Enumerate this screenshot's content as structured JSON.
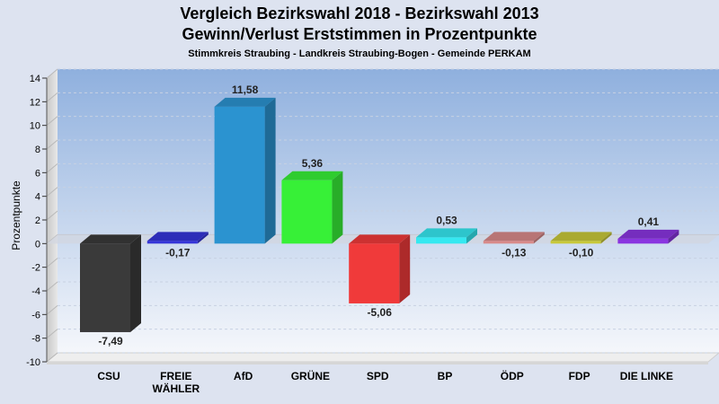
{
  "header": {
    "title_line1": "Vergleich Bezirkswahl 2018 - Bezirkswahl 2013",
    "title_line2": "Gewinn/Verlust Erststimmen in Prozentpunkte",
    "subtitle": "Stimmkreis Straubing - Landkreis Straubing-Bogen - Gemeinde PERKAM"
  },
  "chart_data": {
    "type": "bar",
    "title": "Vergleich Bezirkswahl 2018 - Bezirkswahl 2013 / Gewinn/Verlust Erststimmen in Prozentpunkte",
    "subtitle": "Stimmkreis Straubing - Landkreis Straubing-Bogen - Gemeinde PERKAM",
    "xlabel": "",
    "ylabel": "Prozentpunkte",
    "ylim": [
      -10,
      14
    ],
    "yticks": [
      14,
      12,
      10,
      8,
      6,
      4,
      2,
      0,
      -2,
      -4,
      -6,
      -8,
      -10
    ],
    "grid": true,
    "categories": [
      "CSU",
      "FREIE\nWÄHLER",
      "AfD",
      "GRÜNE",
      "SPD",
      "BP",
      "ÖDP",
      "FDP",
      "DIE LINKE"
    ],
    "values": [
      -7.49,
      -0.17,
      11.58,
      5.36,
      -5.06,
      0.53,
      -0.13,
      -0.1,
      0.41
    ],
    "labels": [
      "-7,49",
      "-0,17",
      "11,58",
      "5,36",
      "-5,06",
      "0,53",
      "-0,13",
      "-0,10",
      "0,41"
    ],
    "colors": [
      "#3a3a3a",
      "#3535d8",
      "#2b93d0",
      "#37f037",
      "#f03a3a",
      "#35e8f0",
      "#d88a8a",
      "#c8c83a",
      "#8a35e0"
    ]
  }
}
